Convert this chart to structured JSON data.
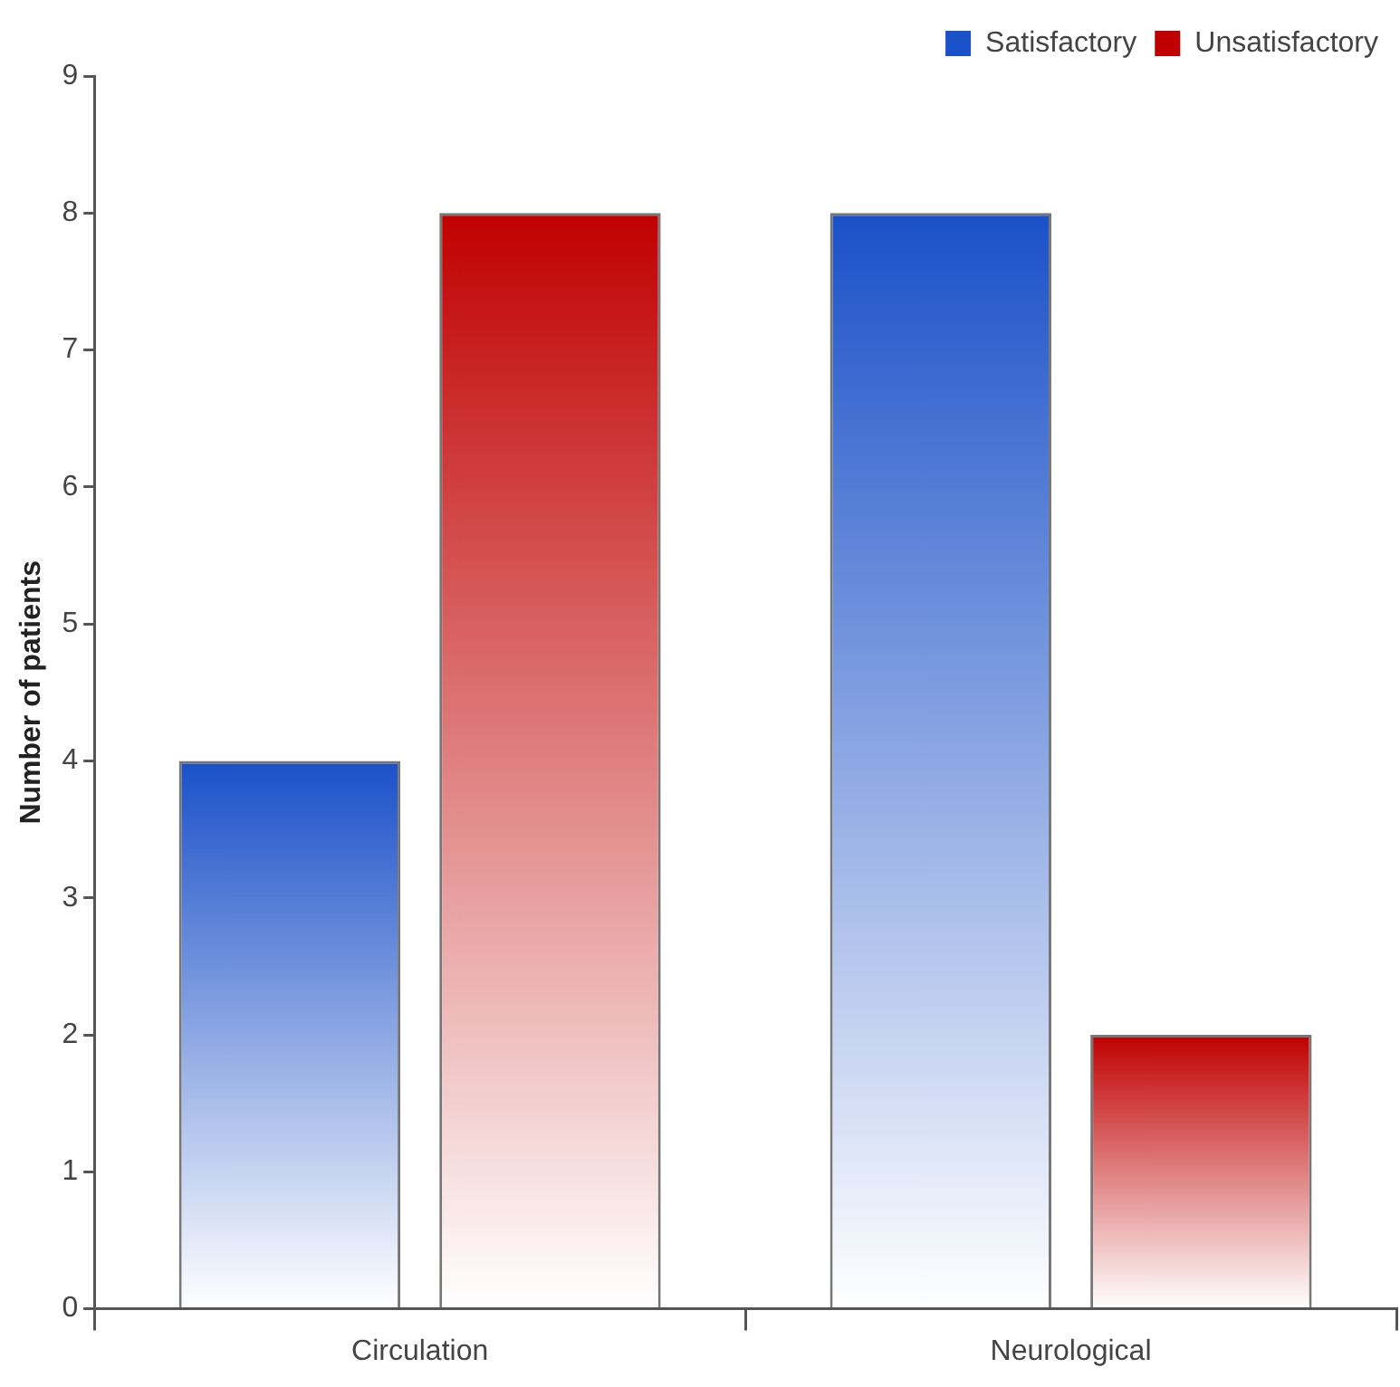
{
  "chart_data": {
    "type": "bar",
    "ylabel": "Number of patients",
    "categories": [
      "Circulation",
      "Neurological"
    ],
    "series": [
      {
        "name": "Satisfactory",
        "color": "#1a50c8",
        "values": [
          4,
          8
        ]
      },
      {
        "name": "Unsatisfactory",
        "color": "#c00000",
        "values": [
          8,
          2
        ]
      }
    ],
    "ylim": [
      0,
      9
    ],
    "yticks": [
      0,
      1,
      2,
      3,
      4,
      5,
      6,
      7,
      8,
      9
    ],
    "grid": false,
    "legend": "top right"
  }
}
